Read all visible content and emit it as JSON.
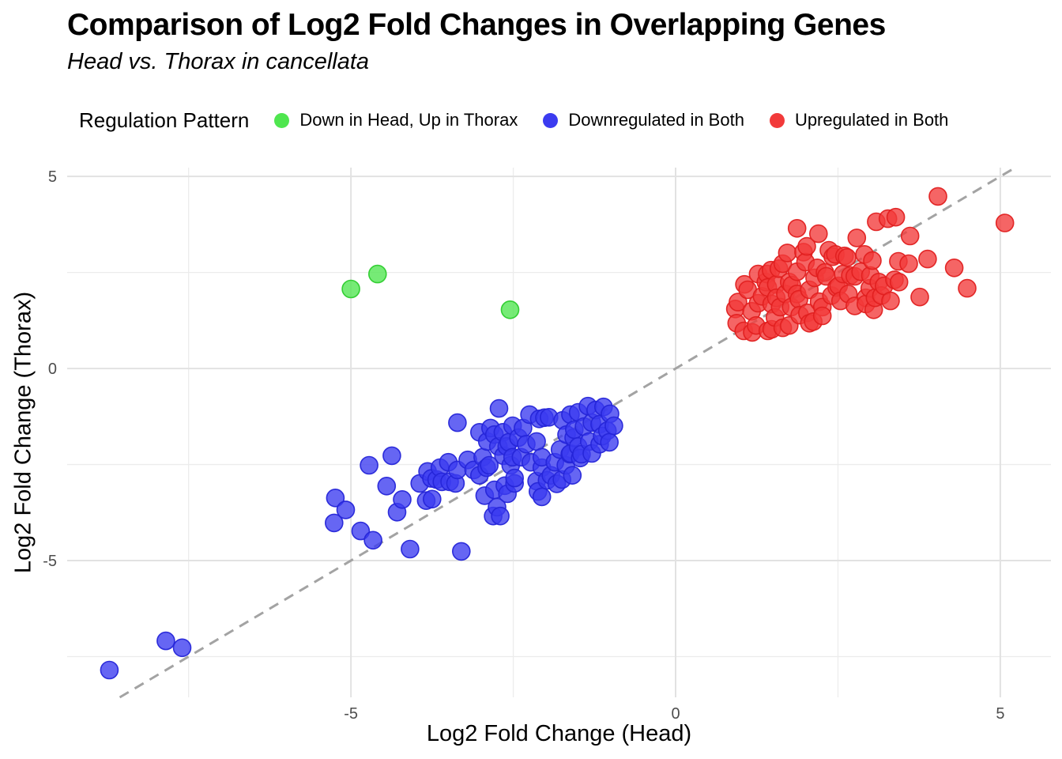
{
  "header": {
    "title": "Comparison of Log2 Fold Changes in Overlapping Genes",
    "subtitle": "Head vs. Thorax in cancellata"
  },
  "legend": {
    "title": "Regulation Pattern",
    "items": [
      {
        "label": "Down in Head, Up in Thorax",
        "color": "#4fe64f"
      },
      {
        "label": "Downregulated in Both",
        "color": "#3b3bf0"
      },
      {
        "label": "Upregulated in Both",
        "color": "#f23a3a"
      }
    ]
  },
  "chart_data": {
    "type": "scatter",
    "title": "Comparison of Log2 Fold Changes in Overlapping Genes",
    "subtitle": "Head vs. Thorax in cancellata",
    "xlabel": "Log2 Fold Change (Head)",
    "ylabel": "Log2 Fold Change (Thorax)",
    "xlim": [
      -9.37,
      5.78
    ],
    "ylim": [
      -8.56,
      5.23
    ],
    "grid": {
      "x_major": [
        -5,
        0,
        5
      ],
      "x_minor": [
        -7.5,
        -2.5,
        2.5
      ],
      "y_major": [
        -5,
        0,
        5
      ],
      "y_minor": [
        -7.5,
        -2.5,
        2.5
      ]
    },
    "ticks": {
      "x": [
        {
          "value": -5,
          "label": "-5"
        },
        {
          "value": 0,
          "label": "0"
        },
        {
          "value": 5,
          "label": "5"
        }
      ],
      "y": [
        {
          "value": -5,
          "label": "-5"
        },
        {
          "value": 0,
          "label": "0"
        },
        {
          "value": 5,
          "label": "5"
        }
      ]
    },
    "identity_line": {
      "from": -8.56,
      "to": 5.23,
      "color": "#a3a3a3",
      "style": "dashed"
    },
    "series": [
      {
        "id": "down-head-up-thorax",
        "name": "Down in Head, Up in Thorax",
        "fill": "#4fe64f",
        "stroke": "#2ccc2c",
        "points": [
          [
            -5.0,
            2.07
          ],
          [
            -4.59,
            2.46
          ],
          [
            -2.55,
            1.53
          ]
        ]
      },
      {
        "id": "downregulated-in-both",
        "name": "Downregulated in Both",
        "fill": "#3b3bf0",
        "stroke": "#2525d8",
        "points": [
          [
            -8.72,
            -7.85
          ],
          [
            -7.85,
            -7.09
          ],
          [
            -7.6,
            -7.27
          ],
          [
            -5.26,
            -4.02
          ],
          [
            -5.24,
            -3.37
          ],
          [
            -5.08,
            -3.68
          ],
          [
            -4.85,
            -4.23
          ],
          [
            -4.72,
            -2.52
          ],
          [
            -4.66,
            -4.47
          ],
          [
            -4.45,
            -3.06
          ],
          [
            -4.37,
            -2.27
          ],
          [
            -4.29,
            -3.74
          ],
          [
            -4.21,
            -3.41
          ],
          [
            -4.09,
            -4.7
          ],
          [
            -3.94,
            -2.99
          ],
          [
            -3.84,
            -3.44
          ],
          [
            -3.82,
            -2.68
          ],
          [
            -3.76,
            -2.86
          ],
          [
            -3.75,
            -3.4
          ],
          [
            -3.68,
            -2.89
          ],
          [
            -3.63,
            -2.58
          ],
          [
            -3.6,
            -2.95
          ],
          [
            -3.5,
            -2.44
          ],
          [
            -3.48,
            -2.95
          ],
          [
            -3.39,
            -2.99
          ],
          [
            -3.36,
            -2.64
          ],
          [
            -3.36,
            -1.41
          ],
          [
            -3.3,
            -4.76
          ],
          [
            -3.2,
            -2.38
          ],
          [
            -3.11,
            -2.64
          ],
          [
            -3.02,
            -2.78
          ],
          [
            -3.02,
            -1.66
          ],
          [
            -2.97,
            -2.31
          ],
          [
            -2.94,
            -3.31
          ],
          [
            -2.91,
            -2.58
          ],
          [
            -2.9,
            -1.9
          ],
          [
            -2.87,
            -2.52
          ],
          [
            -2.85,
            -1.55
          ],
          [
            -2.81,
            -3.84
          ],
          [
            -2.79,
            -3.16
          ],
          [
            -2.79,
            -1.72
          ],
          [
            -2.75,
            -3.61
          ],
          [
            -2.73,
            -2.03
          ],
          [
            -2.72,
            -1.04
          ],
          [
            -2.7,
            -3.84
          ],
          [
            -2.66,
            -1.66
          ],
          [
            -2.65,
            -2.27
          ],
          [
            -2.63,
            -3.05
          ],
          [
            -2.6,
            -2.03
          ],
          [
            -2.59,
            -3.26
          ],
          [
            -2.57,
            -1.92
          ],
          [
            -2.54,
            -2.52
          ],
          [
            -2.51,
            -2.31
          ],
          [
            -2.51,
            -1.49
          ],
          [
            -2.48,
            -2.99
          ],
          [
            -2.48,
            -2.85
          ],
          [
            -2.42,
            -1.8
          ],
          [
            -2.38,
            -2.31
          ],
          [
            -2.35,
            -1.55
          ],
          [
            -2.3,
            -1.97
          ],
          [
            -2.25,
            -1.2
          ],
          [
            -2.23,
            -2.44
          ],
          [
            -2.14,
            -2.93
          ],
          [
            -2.14,
            -1.9
          ],
          [
            -2.12,
            -3.2
          ],
          [
            -2.1,
            -1.31
          ],
          [
            -2.06,
            -3.34
          ],
          [
            -2.06,
            -2.58
          ],
          [
            -2.06,
            -2.31
          ],
          [
            -2.02,
            -1.28
          ],
          [
            -1.98,
            -2.91
          ],
          [
            -1.95,
            -1.27
          ],
          [
            -1.92,
            -2.78
          ],
          [
            -1.86,
            -2.44
          ],
          [
            -1.83,
            -3.0
          ],
          [
            -1.78,
            -2.11
          ],
          [
            -1.75,
            -2.89
          ],
          [
            -1.74,
            -1.35
          ],
          [
            -1.69,
            -2.52
          ],
          [
            -1.68,
            -1.72
          ],
          [
            -1.63,
            -2.23
          ],
          [
            -1.62,
            -2.21
          ],
          [
            -1.62,
            -1.2
          ],
          [
            -1.59,
            -2.78
          ],
          [
            -1.57,
            -1.8
          ],
          [
            -1.56,
            -1.59
          ],
          [
            -1.5,
            -2.03
          ],
          [
            -1.5,
            -1.14
          ],
          [
            -1.47,
            -2.33
          ],
          [
            -1.45,
            -2.23
          ],
          [
            -1.41,
            -1.51
          ],
          [
            -1.35,
            -0.98
          ],
          [
            -1.33,
            -1.9
          ],
          [
            -1.29,
            -2.21
          ],
          [
            -1.29,
            -1.41
          ],
          [
            -1.23,
            -1.08
          ],
          [
            -1.17,
            -1.97
          ],
          [
            -1.17,
            -1.45
          ],
          [
            -1.13,
            -1.76
          ],
          [
            -1.11,
            -1.0
          ],
          [
            -1.05,
            -1.62
          ],
          [
            -1.02,
            -1.92
          ],
          [
            -1.01,
            -1.18
          ],
          [
            -0.95,
            -1.49
          ]
        ]
      },
      {
        "id": "upregulated-in-both",
        "name": "Upregulated in Both",
        "fill": "#f23a3a",
        "stroke": "#e01f1f",
        "points": [
          [
            0.92,
            1.55
          ],
          [
            0.94,
            1.18
          ],
          [
            0.96,
            1.73
          ],
          [
            1.05,
            0.98
          ],
          [
            1.06,
            2.19
          ],
          [
            1.11,
            2.05
          ],
          [
            1.17,
            1.49
          ],
          [
            1.18,
            0.94
          ],
          [
            1.24,
            1.12
          ],
          [
            1.27,
            2.46
          ],
          [
            1.27,
            1.7
          ],
          [
            1.33,
            1.88
          ],
          [
            1.39,
            2.25
          ],
          [
            1.41,
            2.46
          ],
          [
            1.42,
            2.11
          ],
          [
            1.42,
            0.98
          ],
          [
            1.47,
            2.56
          ],
          [
            1.48,
            1.68
          ],
          [
            1.48,
            1.02
          ],
          [
            1.53,
            1.33
          ],
          [
            1.55,
            2.19
          ],
          [
            1.55,
            1.84
          ],
          [
            1.59,
            2.6
          ],
          [
            1.61,
            1.6
          ],
          [
            1.65,
            2.73
          ],
          [
            1.65,
            1.06
          ],
          [
            1.69,
            1.94
          ],
          [
            1.72,
            3.01
          ],
          [
            1.75,
            2.25
          ],
          [
            1.75,
            1.12
          ],
          [
            1.78,
            1.6
          ],
          [
            1.79,
            2.17
          ],
          [
            1.87,
            3.65
          ],
          [
            1.87,
            2.52
          ],
          [
            1.87,
            1.94
          ],
          [
            1.9,
            1.8
          ],
          [
            1.91,
            1.39
          ],
          [
            1.97,
            3.03
          ],
          [
            2.0,
            2.77
          ],
          [
            2.02,
            3.18
          ],
          [
            2.03,
            1.45
          ],
          [
            2.06,
            2.05
          ],
          [
            2.06,
            1.18
          ],
          [
            2.12,
            1.22
          ],
          [
            2.14,
            2.36
          ],
          [
            2.18,
            2.62
          ],
          [
            2.2,
            3.51
          ],
          [
            2.21,
            1.74
          ],
          [
            2.26,
            1.6
          ],
          [
            2.26,
            1.37
          ],
          [
            2.3,
            2.5
          ],
          [
            2.32,
            2.4
          ],
          [
            2.36,
            3.08
          ],
          [
            2.4,
            1.9
          ],
          [
            2.42,
            2.91
          ],
          [
            2.46,
            2.97
          ],
          [
            2.48,
            2.11
          ],
          [
            2.51,
            2.15
          ],
          [
            2.54,
            1.76
          ],
          [
            2.58,
            2.46
          ],
          [
            2.6,
            2.93
          ],
          [
            2.64,
            2.89
          ],
          [
            2.66,
            1.94
          ],
          [
            2.69,
            2.42
          ],
          [
            2.76,
            2.4
          ],
          [
            2.76,
            1.63
          ],
          [
            2.79,
            3.4
          ],
          [
            2.85,
            2.52
          ],
          [
            2.91,
            2.97
          ],
          [
            2.93,
            1.84
          ],
          [
            2.93,
            1.68
          ],
          [
            2.99,
            2.09
          ],
          [
            3.0,
            2.42
          ],
          [
            3.03,
            2.81
          ],
          [
            3.05,
            1.53
          ],
          [
            3.07,
            1.84
          ],
          [
            3.09,
            3.82
          ],
          [
            3.13,
            2.25
          ],
          [
            3.17,
            1.9
          ],
          [
            3.21,
            2.15
          ],
          [
            3.27,
            3.9
          ],
          [
            3.31,
            1.76
          ],
          [
            3.37,
            2.31
          ],
          [
            3.39,
            3.94
          ],
          [
            3.43,
            2.79
          ],
          [
            3.44,
            2.25
          ],
          [
            3.59,
            2.73
          ],
          [
            3.61,
            3.45
          ],
          [
            3.76,
            1.86
          ],
          [
            3.88,
            2.85
          ],
          [
            4.04,
            4.48
          ],
          [
            4.29,
            2.62
          ],
          [
            4.49,
            2.09
          ],
          [
            5.07,
            3.79
          ]
        ]
      }
    ]
  }
}
